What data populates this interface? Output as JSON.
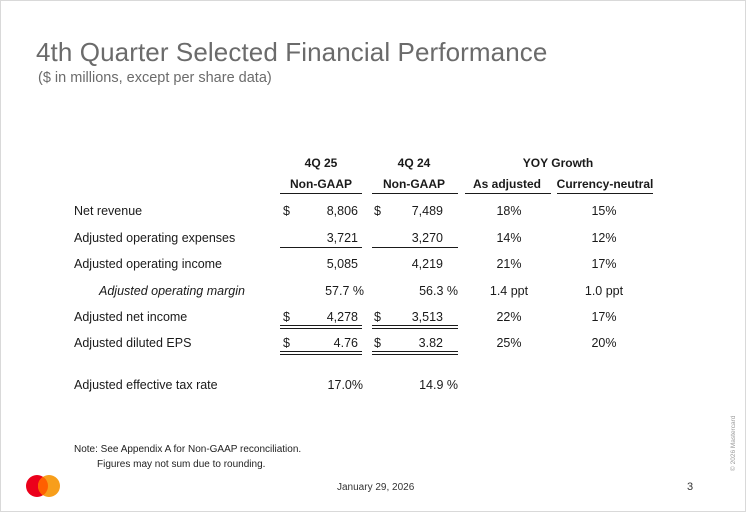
{
  "title": "4th Quarter Selected Financial Performance",
  "subtitle": "($ in millions, except per share data)",
  "table": {
    "headers": {
      "col1_line1": "4Q 25",
      "col1_line2": "Non-GAAP",
      "col2_line1": "4Q 24",
      "col2_line2": "Non-GAAP",
      "yoy_group": "YOY Growth",
      "yoy_adjusted": "As adjusted",
      "yoy_currency": "Currency-neutral"
    },
    "currency_symbol": "$",
    "rows": [
      {
        "label": "Net revenue",
        "q25": "8,806",
        "q24": "7,489",
        "adj": "18%",
        "cn": "15%"
      },
      {
        "label": "Adjusted operating expenses",
        "q25": "3,721",
        "q24": "3,270",
        "adj": "14%",
        "cn": "12%"
      },
      {
        "label": "Adjusted operating income",
        "q25": "5,085",
        "q24": "4,219",
        "adj": "21%",
        "cn": "17%"
      },
      {
        "label": "Adjusted operating margin",
        "q25": "57.7 %",
        "q24": "56.3 %",
        "adj": "1.4 ppt",
        "cn": "1.0 ppt"
      },
      {
        "label": "Adjusted net income",
        "q25": "4,278",
        "q24": "3,513",
        "adj": "22%",
        "cn": "17%"
      },
      {
        "label": "Adjusted diluted EPS",
        "q25": "4.76",
        "q24": "3.82",
        "adj": "25%",
        "cn": "20%"
      },
      {
        "label": "Adjusted effective tax rate",
        "q25": "17.0%",
        "q24": "14.9 %"
      }
    ]
  },
  "notes": {
    "line1": "Note: See Appendix A for Non-GAAP reconciliation.",
    "line2": "Figures may not sum due to rounding."
  },
  "footer": {
    "date": "January 29, 2026",
    "page_number": "3",
    "copyright": "© 2026 Mastercard"
  },
  "colors": {
    "logo_red": "#eb001b",
    "logo_orange": "#f79e1b",
    "logo_overlap": "#ff5f00"
  }
}
